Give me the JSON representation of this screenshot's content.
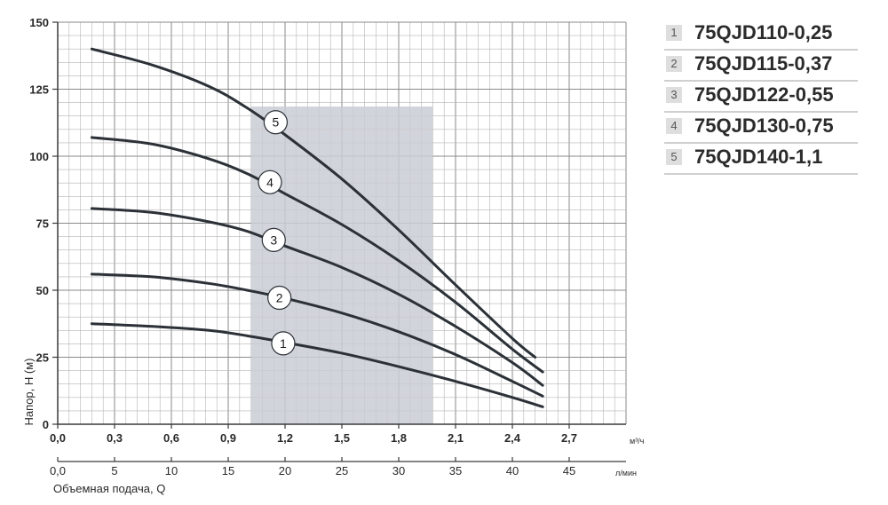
{
  "chart_data": {
    "type": "line",
    "title": "",
    "ylabel": "Напор, H (м)",
    "xlabel": "Объемная подача, Q",
    "x_unit": "м³/ч",
    "x2_unit": "л/мин",
    "xlim": [
      0,
      3.0
    ],
    "ylim": [
      0,
      150
    ],
    "grid": true,
    "legend_position": "right",
    "y_ticks": [
      "0",
      "25",
      "50",
      "75",
      "100",
      "125",
      "150"
    ],
    "x_ticks": [
      "0,0",
      "0,3",
      "0,6",
      "0,9",
      "1,2",
      "1,5",
      "1,8",
      "2,1",
      "2,4",
      "2,7"
    ],
    "x2_ticks": [
      "0,0",
      "5",
      "10",
      "15",
      "20",
      "25",
      "30",
      "35",
      "40",
      "45"
    ],
    "recommended_range": [
      1.02,
      1.98
    ],
    "series": [
      {
        "label": "1",
        "name": "75QJD110-0,25",
        "x": [
          0.18,
          0.5,
          0.8,
          1.0,
          1.2,
          1.5,
          1.8,
          2.1,
          2.4,
          2.56
        ],
        "y": [
          37.5,
          36.5,
          35,
          33,
          30.5,
          26.5,
          21.5,
          16,
          10,
          6.5
        ]
      },
      {
        "label": "2",
        "name": "75QJD115-0,37",
        "x": [
          0.18,
          0.5,
          0.8,
          1.0,
          1.2,
          1.5,
          1.8,
          2.1,
          2.4,
          2.56
        ],
        "y": [
          56,
          55,
          52.5,
          50,
          47,
          41.5,
          34.5,
          26,
          16,
          10.5
        ]
      },
      {
        "label": "3",
        "name": "75QJD122-0,55",
        "x": [
          0.18,
          0.5,
          0.8,
          1.0,
          1.2,
          1.5,
          1.8,
          2.1,
          2.4,
          2.56
        ],
        "y": [
          80.5,
          79,
          75.5,
          72,
          66.5,
          58.5,
          48.5,
          36.5,
          23,
          14.5
        ]
      },
      {
        "label": "4",
        "name": "75QJD130-0,75",
        "x": [
          0.18,
          0.5,
          0.8,
          1.0,
          1.2,
          1.5,
          1.8,
          2.1,
          2.4,
          2.56
        ],
        "y": [
          107,
          104.5,
          99,
          93.5,
          86,
          74.5,
          61,
          45.5,
          28,
          19.5
        ]
      },
      {
        "label": "5",
        "name": "75QJD140-1,1",
        "x": [
          0.18,
          0.5,
          0.8,
          1.0,
          1.2,
          1.5,
          1.8,
          2.1,
          2.4,
          2.52
        ],
        "y": [
          140,
          134,
          126,
          118,
          108,
          91.5,
          72.5,
          52,
          32,
          25
        ]
      }
    ],
    "curve_label_x": [
      1.12,
      1.1,
      1.07,
      1.05,
      1.08
    ]
  },
  "legend": {
    "items": [
      {
        "num": "1",
        "name": "75QJD110-0,25"
      },
      {
        "num": "2",
        "name": "75QJD115-0,37"
      },
      {
        "num": "3",
        "name": "75QJD122-0,55"
      },
      {
        "num": "4",
        "name": "75QJD130-0,75"
      },
      {
        "num": "5",
        "name": "75QJD140-1,1"
      }
    ]
  }
}
